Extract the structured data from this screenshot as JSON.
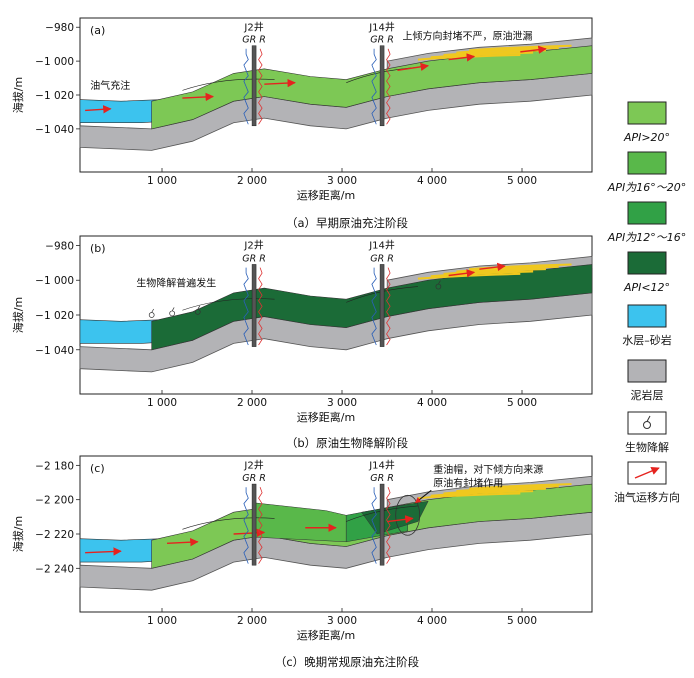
{
  "panels": [
    {
      "label": "(a)",
      "caption": "（a）早期原油充注阶段",
      "wells": [
        {
          "name": "J2井",
          "logs": "GR R"
        },
        {
          "name": "J14井",
          "logs": "GR R"
        }
      ],
      "annotations": [
        {
          "text": "上倾方向封堵不严，原油泄漏"
        },
        {
          "text": "油气充注"
        }
      ],
      "x_axis_label": "运移距离/m",
      "y_axis_label": "海拔/m",
      "y_ticks": [
        "−980",
        "−1 000",
        "−1 020",
        "−1 040"
      ],
      "y_values": [
        -980,
        -1000,
        -1020,
        -1040
      ],
      "x_ticks": [
        "1 000",
        "2 000",
        "3 000",
        "4 000",
        "5 000"
      ]
    },
    {
      "label": "(b)",
      "caption": "（b）原油生物降解阶段",
      "wells": [
        {
          "name": "J2井",
          "logs": "GR R"
        },
        {
          "name": "J14井",
          "logs": "GR R"
        }
      ],
      "annotations": [
        {
          "text": "生物降解普遍发生"
        }
      ],
      "x_axis_label": "运移距离/m",
      "y_axis_label": "海拔/m",
      "y_ticks": [
        "−980",
        "−1 000",
        "−1 020",
        "−1 040"
      ],
      "y_values": [
        -980,
        -1000,
        -1020,
        -1040
      ],
      "x_ticks": [
        "1 000",
        "2 000",
        "3 000",
        "4 000",
        "5 000"
      ]
    },
    {
      "label": "(c)",
      "caption": "（c）晚期常规原油充注阶段",
      "wells": [
        {
          "name": "J2井",
          "logs": "GR R"
        },
        {
          "name": "J14井",
          "logs": "GR R"
        }
      ],
      "annotations": [
        {
          "text": "重油帽，对下倾方向来源"
        },
        {
          "text": "原油有封堵作用"
        }
      ],
      "x_axis_label": "运移距离/m",
      "y_axis_label": "海拔/m",
      "y_ticks": [
        "−2 180",
        "−2 200",
        "−2 220",
        "−2 240"
      ],
      "y_values": [
        -2180,
        -2200,
        -2220,
        -2240
      ],
      "x_ticks": [
        "1 000",
        "2 000",
        "3 000",
        "4 000",
        "5 000"
      ]
    }
  ],
  "legend": [
    {
      "key": "api_gt20",
      "label": "API>20°",
      "color": "#7dc855"
    },
    {
      "key": "api_16_20",
      "label": "API为16°～20°",
      "color": "#59b84a"
    },
    {
      "key": "api_12_16",
      "label": "API为12°～16°",
      "color": "#31a146"
    },
    {
      "key": "api_lt12",
      "label": "API<12°",
      "color": "#1b6b37"
    },
    {
      "key": "water_sand",
      "label": "水层–砂岩",
      "color": "#3cc3ee"
    },
    {
      "key": "mudstone",
      "label": "泥岩层",
      "color": "#b3b3b6"
    },
    {
      "key": "biodegradation",
      "label": "生物降解",
      "icon": "biodegradation-symbol-icon"
    },
    {
      "key": "migration",
      "label": "油气运移方向",
      "icon": "red-arrow-icon",
      "color": "#e5231f"
    }
  ]
}
